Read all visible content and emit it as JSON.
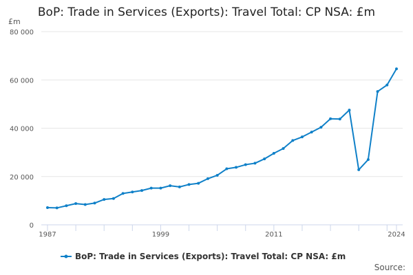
{
  "chart_data": {
    "type": "line",
    "title": "BoP: Trade in Services (Exports): Travel Total: CP NSA: £m",
    "ylabel": "£m",
    "xlabel": "",
    "ylim": [
      0,
      80000
    ],
    "yticks": [
      0,
      20000,
      40000,
      60000,
      80000
    ],
    "ytick_labels": [
      "0",
      "20 000",
      "40 000",
      "60 000",
      "80 000"
    ],
    "xtick_labels": [
      "1987",
      "1999",
      "2011",
      "2024"
    ],
    "grid": true,
    "legend_position": "bottom",
    "color": "#0f80c8",
    "series": [
      {
        "name": "BoP: Trade in Services (Exports): Travel Total: CP NSA: £m",
        "x": [
          1987,
          1988,
          1989,
          1990,
          1991,
          1992,
          1993,
          1994,
          1995,
          1996,
          1997,
          1998,
          1999,
          2000,
          2001,
          2002,
          2003,
          2004,
          2005,
          2006,
          2007,
          2008,
          2009,
          2010,
          2011,
          2012,
          2013,
          2014,
          2015,
          2016,
          2017,
          2018,
          2019,
          2020,
          2021,
          2022,
          2023,
          2024
        ],
        "values": [
          7100,
          7000,
          7900,
          8800,
          8400,
          9000,
          10500,
          10900,
          13000,
          13600,
          14200,
          15200,
          15200,
          16200,
          15700,
          16700,
          17200,
          19100,
          20500,
          23200,
          23800,
          24900,
          25500,
          27300,
          29600,
          31600,
          34900,
          36400,
          38400,
          40400,
          43900,
          43800,
          47500,
          22800,
          27000,
          55200,
          57900,
          64600
        ]
      }
    ]
  },
  "source_label": "Source:"
}
